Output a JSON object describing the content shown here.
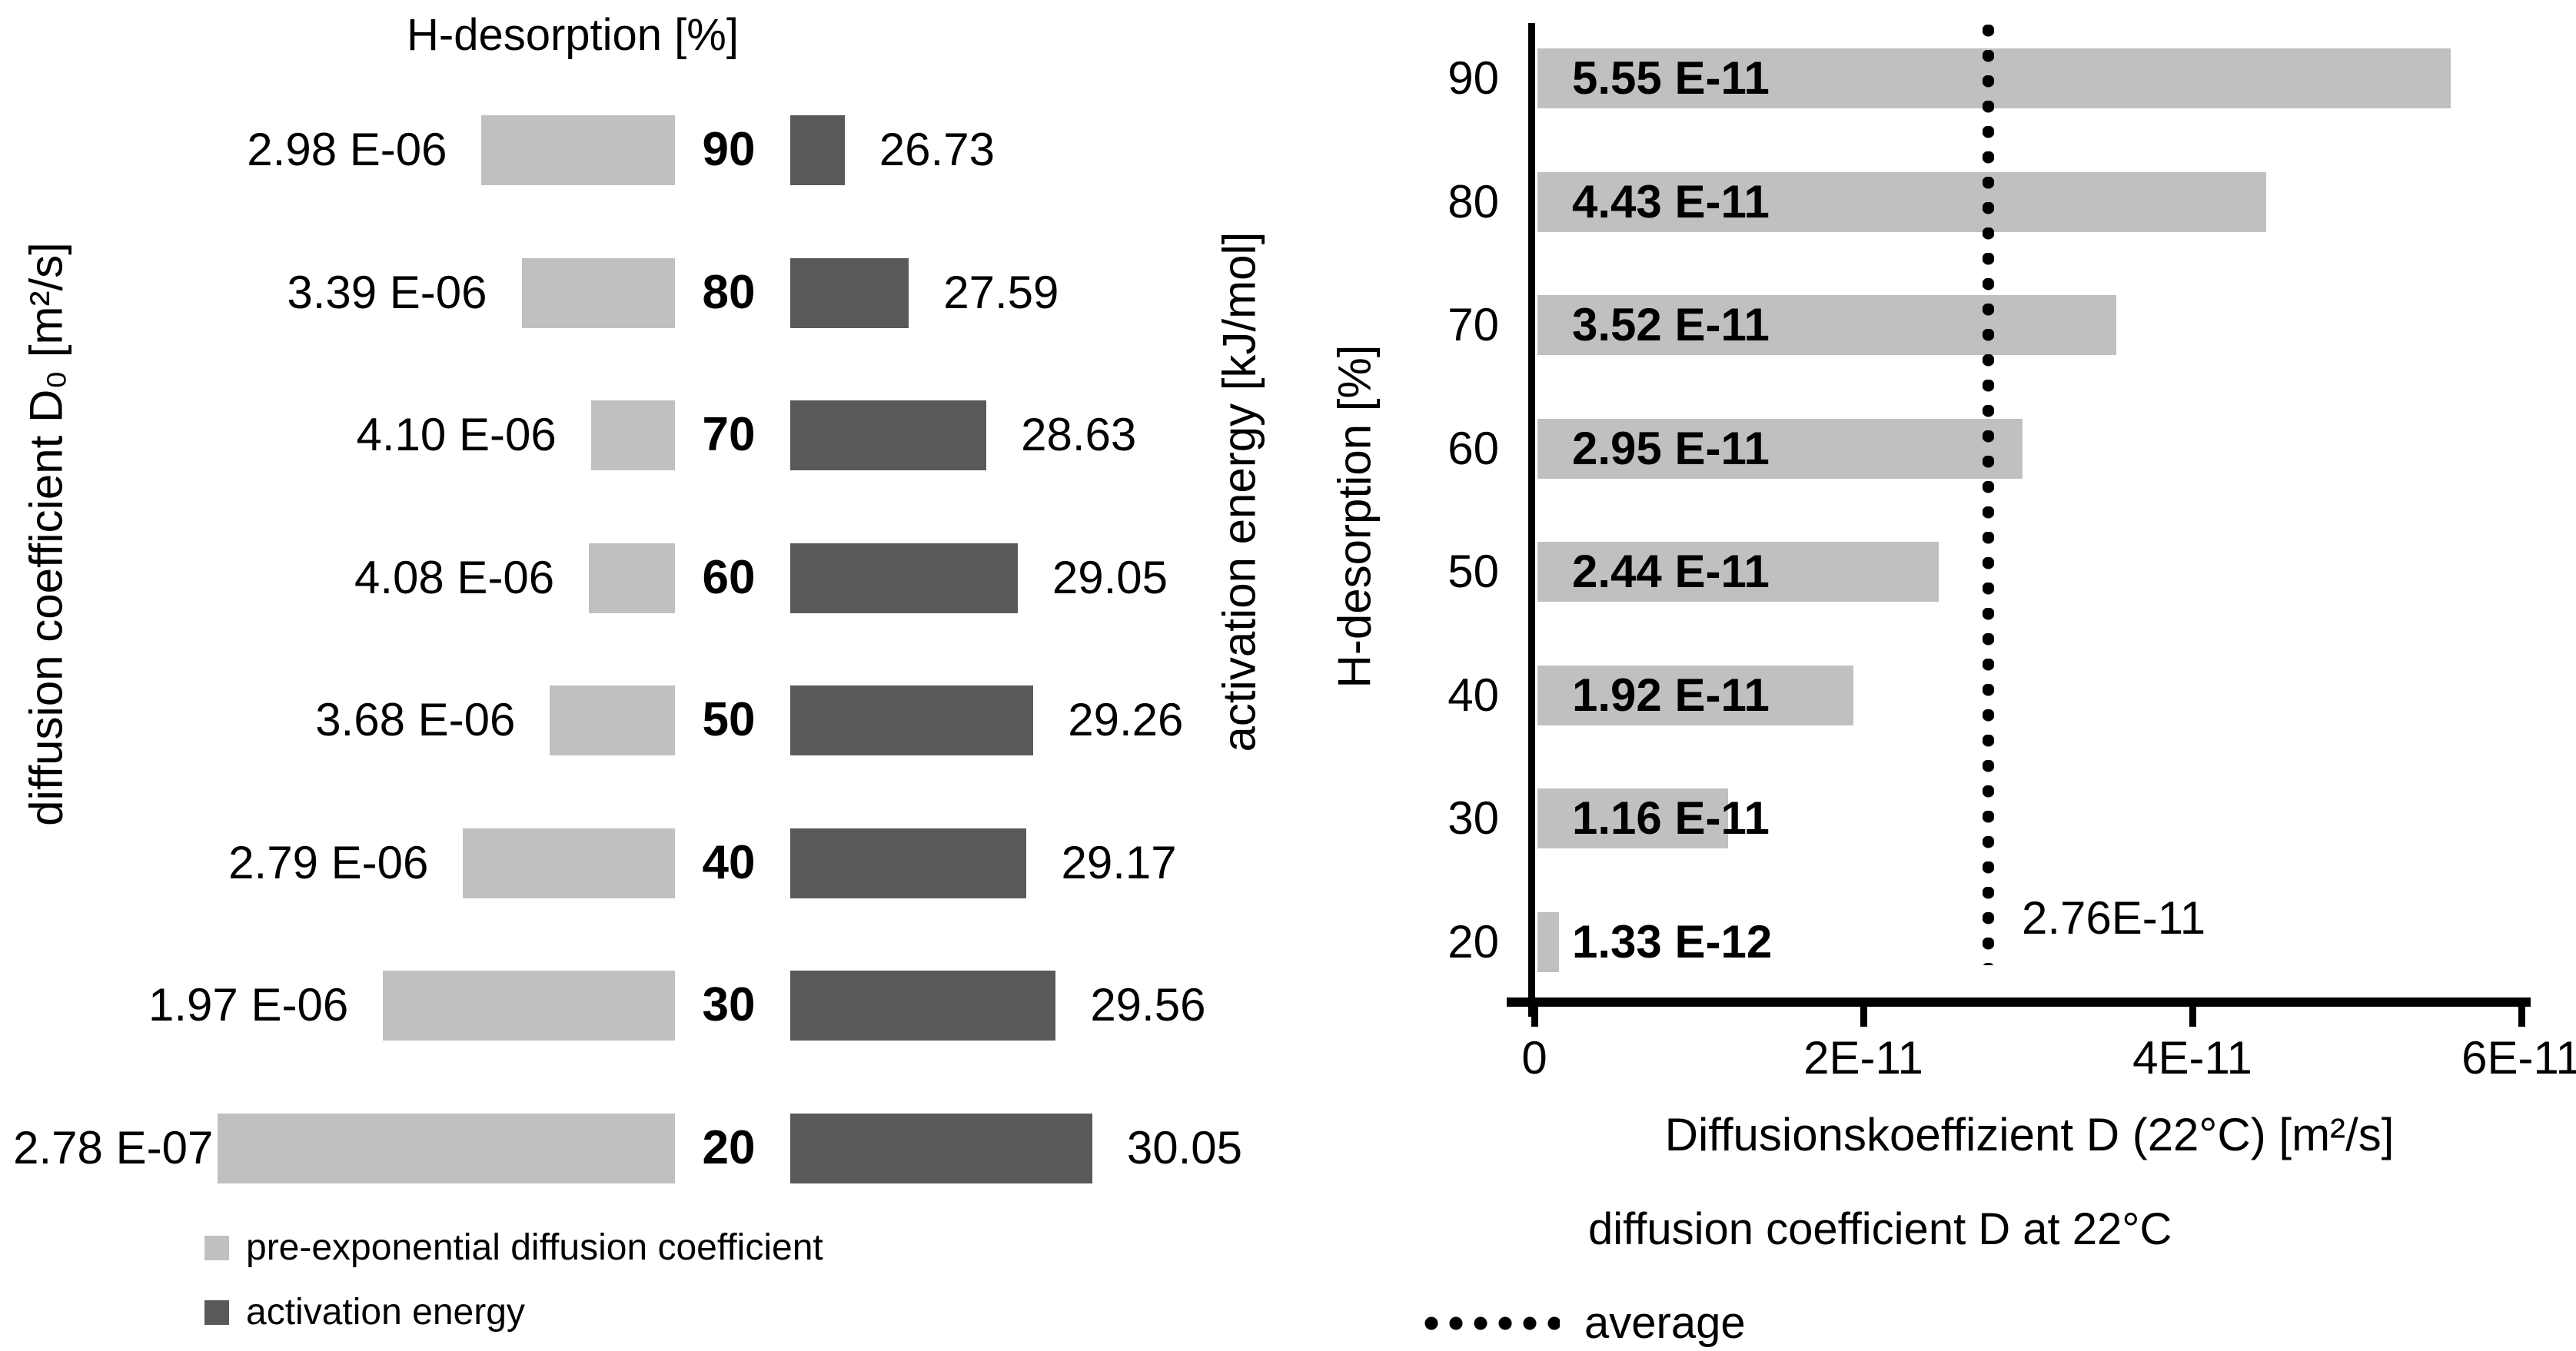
{
  "chart_data": [
    {
      "id": "left-tornado-chart",
      "type": "bar",
      "orientation": "horizontal",
      "title": "H-desorption [%]",
      "categories": [
        "90",
        "80",
        "70",
        "60",
        "50",
        "40",
        "30",
        "20"
      ],
      "series": [
        {
          "name": "pre-exponential diffusion coefficient",
          "axis_label": "diffusion coefficient D₀ [m²/s]",
          "side": "left",
          "unit": "m²/s",
          "color": "#c0c0c0",
          "labels": [
            "2.98 E-06",
            "3.39 E-06",
            "4.10 E-06",
            "4.08 E-06",
            "3.68 E-06",
            "2.79 E-06",
            "1.97 E-06",
            "2.78 E-07"
          ],
          "values": [
            2.98e-06,
            3.39e-06,
            4.1e-06,
            4.08e-06,
            3.68e-06,
            2.79e-06,
            1.97e-06,
            2.78e-07
          ]
        },
        {
          "name": "activation energy",
          "axis_label": "activation energy [kJ/mol]",
          "side": "right",
          "unit": "kJ/mol",
          "color": "#595959",
          "labels": [
            "26.73",
            "27.59",
            "28.63",
            "29.05",
            "29.26",
            "29.17",
            "29.56",
            "30.05"
          ],
          "values": [
            26.73,
            27.59,
            28.63,
            29.05,
            29.26,
            29.17,
            29.56,
            30.05
          ]
        }
      ],
      "layout_hints": {
        "center_value_column": true,
        "left_axis_reversed": true,
        "left_axis_max": 4.96e-06,
        "right_axis_min": 26.0,
        "grid": false,
        "legend_position": "bottom-left"
      }
    },
    {
      "id": "right-bar-chart",
      "type": "bar",
      "orientation": "horizontal",
      "title": "",
      "ylabel": "H-desorption [%]",
      "xlabel": "Diffusionskoeffizient D (22°C) [m²/s]",
      "categories": [
        "90",
        "80",
        "70",
        "60",
        "50",
        "40",
        "30",
        "20"
      ],
      "values": [
        5.55e-11,
        4.43e-11,
        3.52e-11,
        2.95e-11,
        2.44e-11,
        1.92e-11,
        1.16e-11,
        1.33e-12
      ],
      "bar_labels": [
        "5.55 E-11",
        "4.43 E-11",
        "3.52 E-11",
        "2.95 E-11",
        "2.44 E-11",
        "1.92 E-11",
        "1.16 E-11",
        "1.33 E-12"
      ],
      "bar_color": "#c0c0c0",
      "x_ticks": [
        {
          "label": "0",
          "value": 0
        },
        {
          "label": "2E-11",
          "value": 2e-11
        },
        {
          "label": "4E-11",
          "value": 4e-11
        },
        {
          "label": "6E-11",
          "value": 6e-11
        }
      ],
      "xlim": [
        0,
        6e-11
      ],
      "average": {
        "value": 2.76e-11,
        "label": "2.76E-11",
        "style": "dotted-vertical-line"
      },
      "legend": [
        {
          "label": "diffusion coefficient D at 22°C",
          "marker": "bar",
          "color": "#c0c0c0"
        },
        {
          "label": "average",
          "marker": "dotted-line",
          "color": "#000000"
        }
      ],
      "layout_hints": {
        "grid": false,
        "legend_position": "bottom",
        "value_labels_inside_bars": true
      }
    }
  ]
}
